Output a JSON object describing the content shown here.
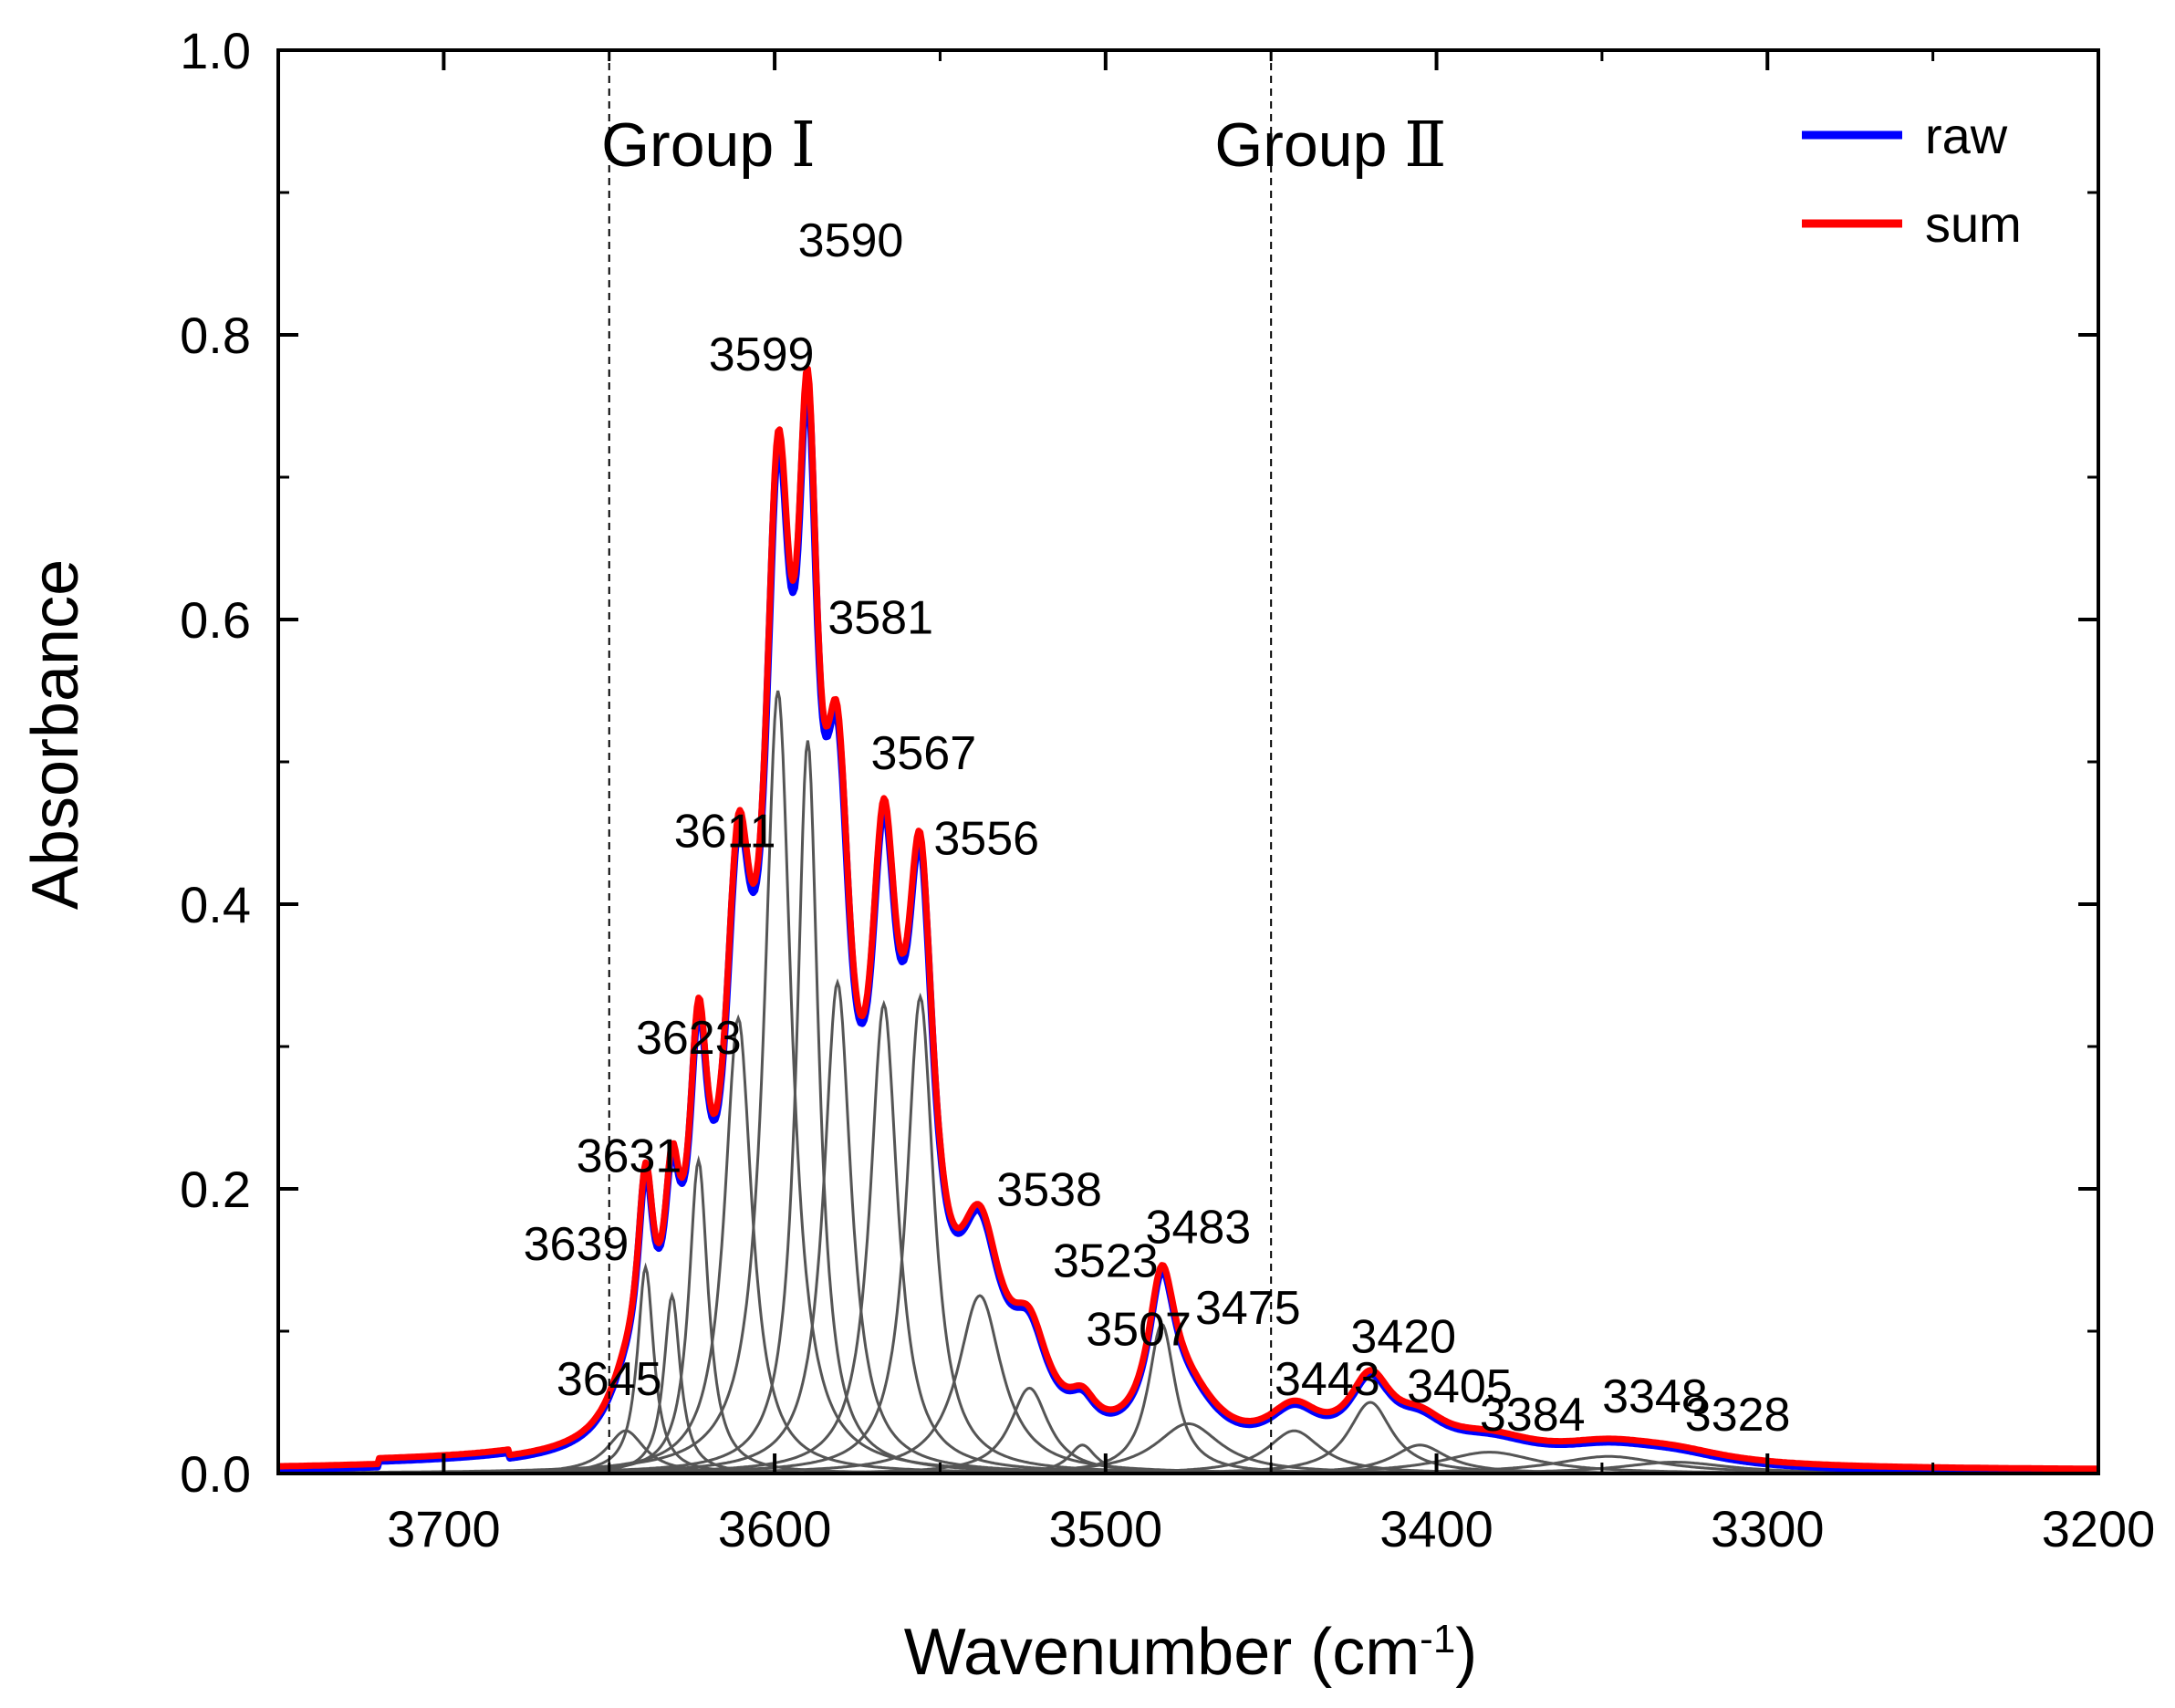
{
  "chart_data": {
    "type": "line",
    "title": "",
    "xlabel": "Wavenumber (cm",
    "xlabel_sup": "-1",
    "xlabel_close": ")",
    "ylabel": "Absorbance",
    "xlim": [
      3750,
      3200
    ],
    "ylim": [
      0.0,
      1.0
    ],
    "x_reversed": true,
    "x_ticks": [
      3700,
      3600,
      3500,
      3400,
      3300,
      3200
    ],
    "x_tick_labels": [
      "3700",
      "3600",
      "3500",
      "3400",
      "3300",
      "3200"
    ],
    "y_ticks": [
      0.0,
      0.2,
      0.4,
      0.6,
      0.8,
      1.0
    ],
    "y_tick_labels": [
      "0.0",
      "0.2",
      "0.4",
      "0.6",
      "0.8",
      "1.0"
    ],
    "grid": false,
    "legend_position": "top-right",
    "group_boundaries": [
      3650,
      3450
    ],
    "groups": [
      {
        "name": "Group",
        "numeral": "Ⅰ",
        "center": 3620
      },
      {
        "name": "Group",
        "numeral": "Ⅱ",
        "center": 3432
      }
    ],
    "series": [
      {
        "name": "raw",
        "color": "#0000ff"
      },
      {
        "name": "sum",
        "color": "#ff0000"
      }
    ],
    "component_color": "#555555",
    "components": [
      {
        "center": 3645,
        "height": 0.03,
        "width": 7
      },
      {
        "center": 3639,
        "height": 0.145,
        "width": 3
      },
      {
        "center": 3631,
        "height": 0.125,
        "width": 3
      },
      {
        "center": 3623,
        "height": 0.22,
        "width": 3.5
      },
      {
        "center": 3611,
        "height": 0.32,
        "width": 5
      },
      {
        "center": 3599,
        "height": 0.55,
        "width": 5
      },
      {
        "center": 3590,
        "height": 0.515,
        "width": 4
      },
      {
        "center": 3581,
        "height": 0.345,
        "width": 5
      },
      {
        "center": 3567,
        "height": 0.33,
        "width": 5
      },
      {
        "center": 3556,
        "height": 0.335,
        "width": 5
      },
      {
        "center": 3538,
        "height": 0.125,
        "width": 8
      },
      {
        "center": 3523,
        "height": 0.06,
        "width": 7
      },
      {
        "center": 3507,
        "height": 0.02,
        "width": 5
      },
      {
        "center": 3483,
        "height": 0.105,
        "width": 5
      },
      {
        "center": 3475,
        "height": 0.035,
        "width": 12
      },
      {
        "center": 3443,
        "height": 0.03,
        "width": 10
      },
      {
        "center": 3420,
        "height": 0.05,
        "width": 8
      },
      {
        "center": 3405,
        "height": 0.02,
        "width": 10
      },
      {
        "center": 3384,
        "height": 0.015,
        "width": 18
      },
      {
        "center": 3348,
        "height": 0.012,
        "width": 20
      },
      {
        "center": 3328,
        "height": 0.008,
        "width": 20
      }
    ],
    "peak_labels": [
      {
        "text": "3645",
        "x": 3650,
        "y": 0.055
      },
      {
        "text": "3639",
        "x": 3660,
        "y": 0.15
      },
      {
        "text": "3631",
        "x": 3644,
        "y": 0.212
      },
      {
        "text": "3623",
        "x": 3626,
        "y": 0.295
      },
      {
        "text": "3611",
        "x": 3615,
        "y": 0.44
      },
      {
        "text": "3599",
        "x": 3604,
        "y": 0.775
      },
      {
        "text": "3590",
        "x": 3577,
        "y": 0.855
      },
      {
        "text": "3581",
        "x": 3568,
        "y": 0.59
      },
      {
        "text": "3567",
        "x": 3555,
        "y": 0.495
      },
      {
        "text": "3556",
        "x": 3536,
        "y": 0.435
      },
      {
        "text": "3538",
        "x": 3517,
        "y": 0.188
      },
      {
        "text": "3523",
        "x": 3500,
        "y": 0.138
      },
      {
        "text": "3507",
        "x": 3490,
        "y": 0.09
      },
      {
        "text": "3483",
        "x": 3472,
        "y": 0.162
      },
      {
        "text": "3475",
        "x": 3457,
        "y": 0.105
      },
      {
        "text": "3443",
        "x": 3433,
        "y": 0.055
      },
      {
        "text": "3420",
        "x": 3410,
        "y": 0.085
      },
      {
        "text": "3405",
        "x": 3393,
        "y": 0.05
      },
      {
        "text": "3384",
        "x": 3371,
        "y": 0.03
      },
      {
        "text": "3348",
        "x": 3334,
        "y": 0.043
      },
      {
        "text": "3328",
        "x": 3309,
        "y": 0.03
      }
    ]
  }
}
